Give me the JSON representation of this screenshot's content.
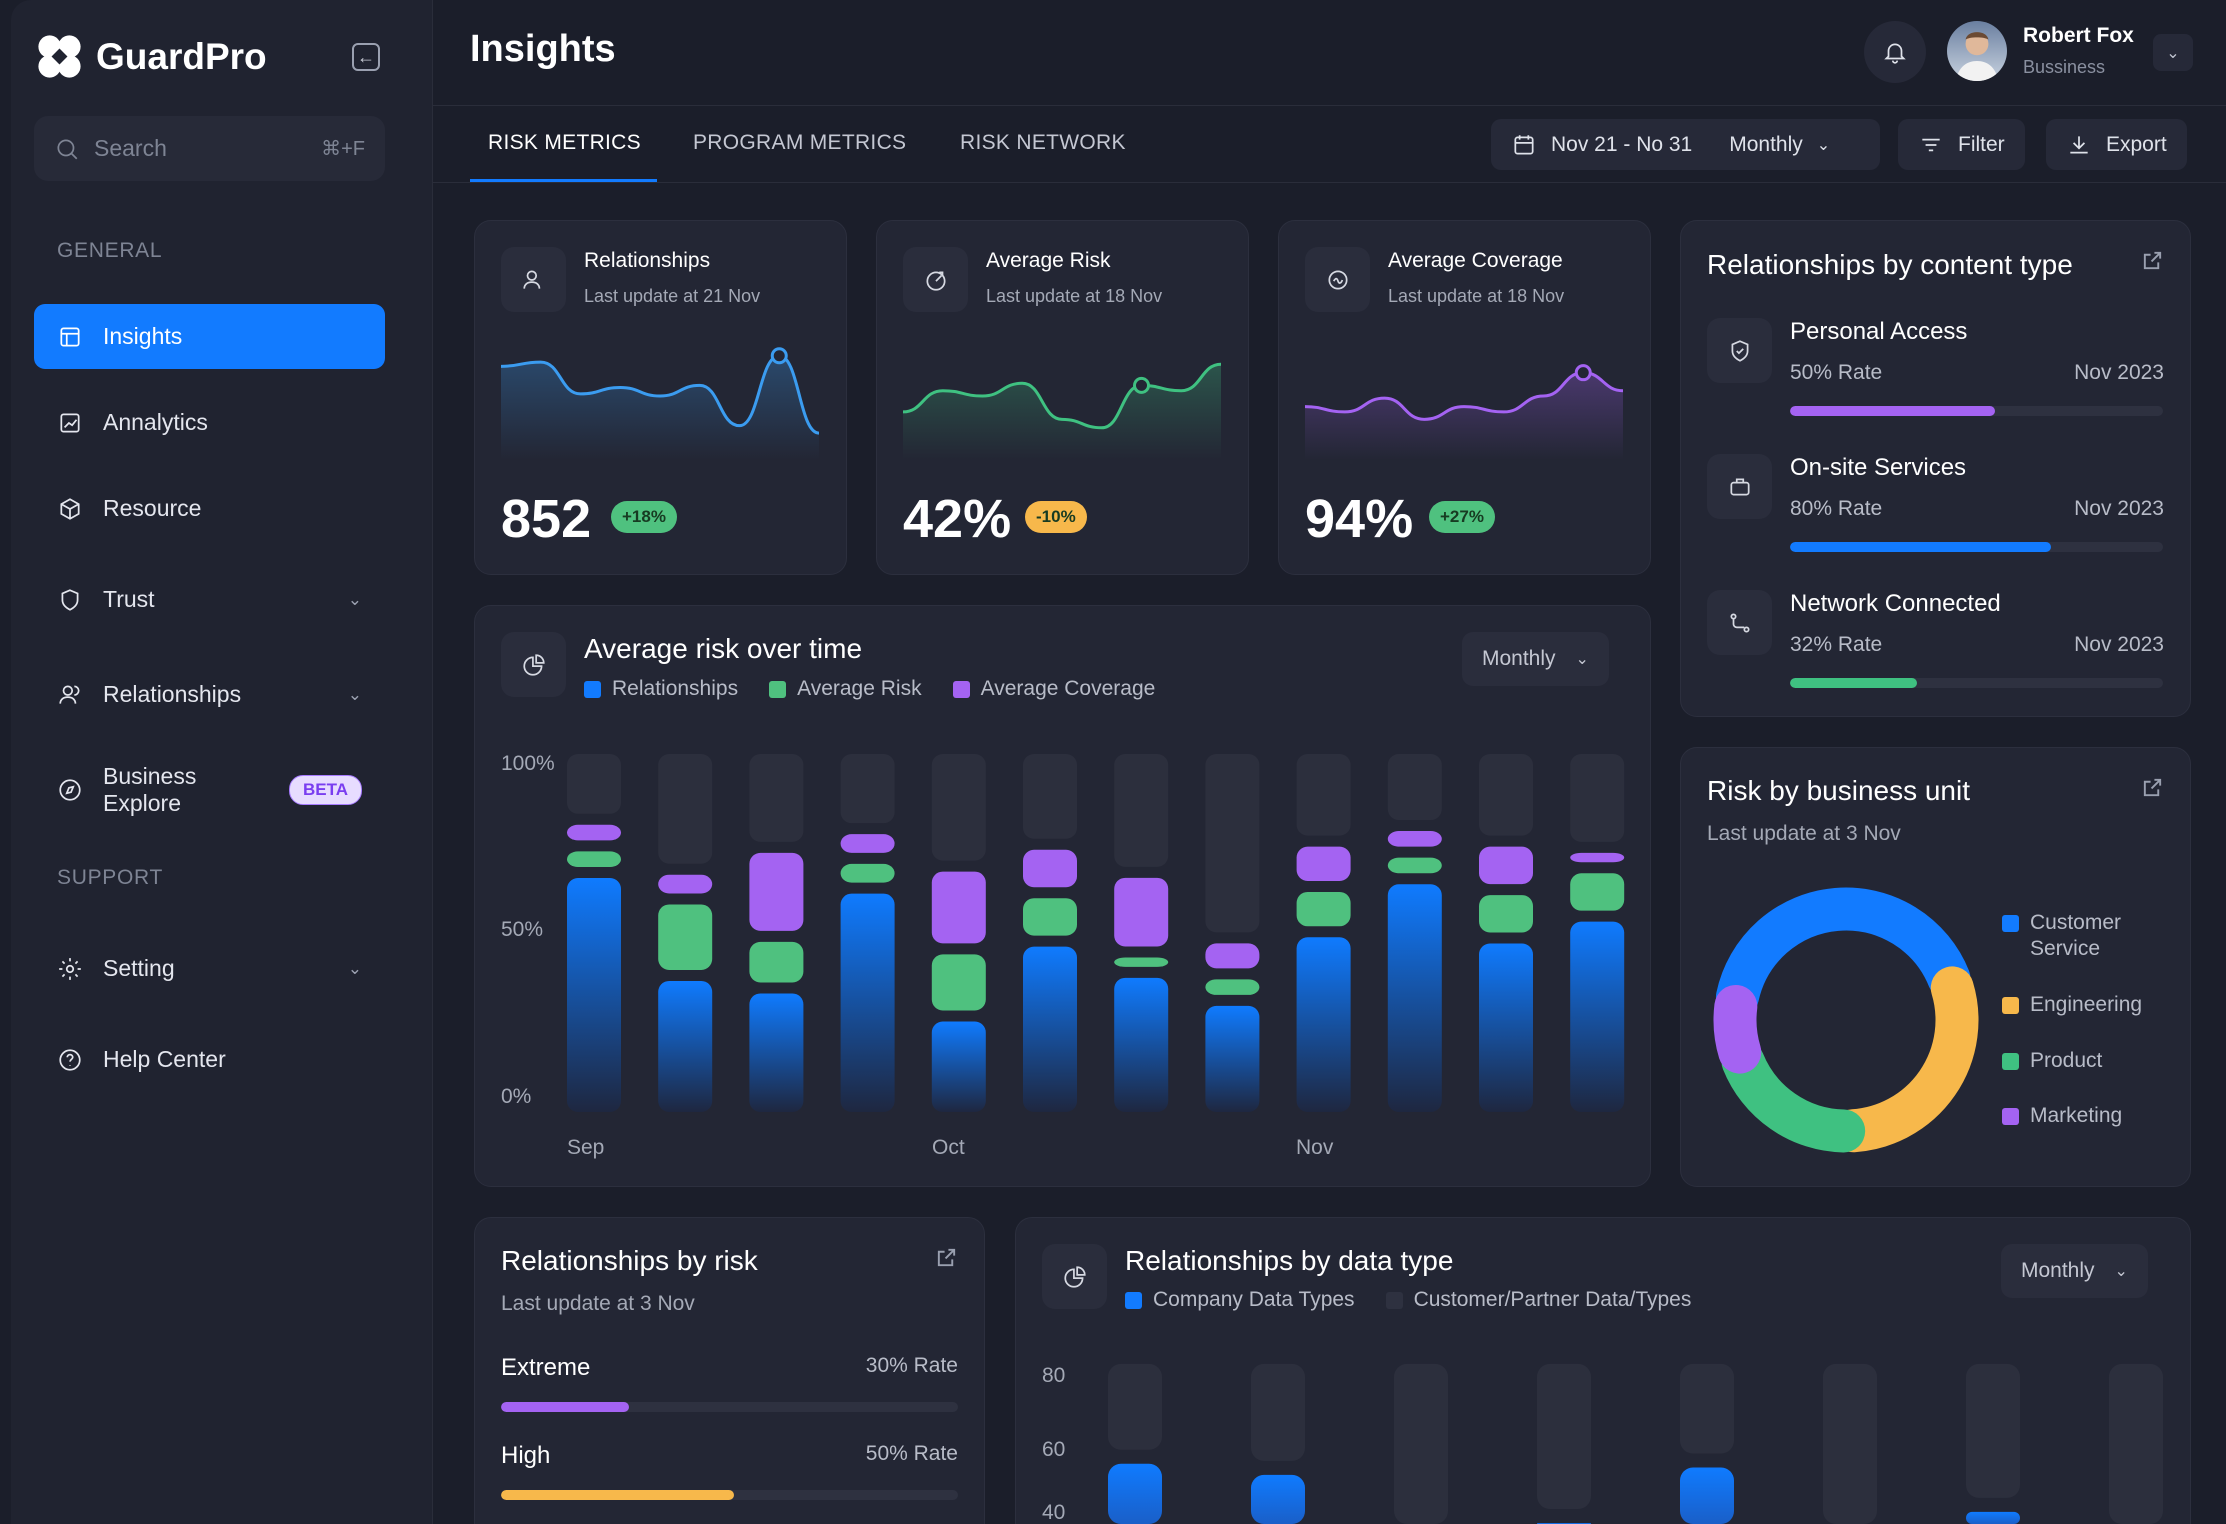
{
  "app": {
    "name": "GuardPro"
  },
  "sidebar": {
    "search_placeholder": "Search",
    "search_shortcut": "⌘+F",
    "general_label": "GENERAL",
    "support_label": "SUPPORT",
    "items": [
      {
        "label": "Insights",
        "icon": "layout-icon"
      },
      {
        "label": "Annalytics",
        "icon": "chart-icon"
      },
      {
        "label": "Resource",
        "icon": "cube-icon"
      },
      {
        "label": "Trust",
        "icon": "shield-icon"
      },
      {
        "label": "Relationships",
        "icon": "users-icon"
      },
      {
        "label": "Business Explore",
        "icon": "compass-icon",
        "badge": "BETA"
      }
    ],
    "support_items": [
      {
        "label": "Setting",
        "icon": "gear-icon"
      },
      {
        "label": "Help Center",
        "icon": "help-icon"
      }
    ]
  },
  "header": {
    "title": "Insights",
    "user": {
      "name": "Robert Fox",
      "role": "Bussiness"
    }
  },
  "tabs": [
    "RISK METRICS",
    "PROGRAM METRICS",
    "RISK NETWORK"
  ],
  "toolbar": {
    "date_range": "Nov 21 - No 31",
    "period": "Monthly",
    "filter": "Filter",
    "export": "Export"
  },
  "stats": [
    {
      "title": "Relationships",
      "sub": "Last update at 21 Nov",
      "value": "852",
      "change": "+18%",
      "color": "#3b9cf0",
      "badge_color": "#4fc17f",
      "trend": [
        78,
        82,
        52,
        58,
        50,
        60,
        22,
        88,
        15
      ],
      "marker": 7
    },
    {
      "title": "Average Risk",
      "sub": "Last update at 18 Nov",
      "value": "42%",
      "change": "-10%",
      "color": "#3fc181",
      "badge_color": "#f7b84b",
      "trend": [
        35,
        55,
        50,
        62,
        28,
        20,
        60,
        55,
        80
      ],
      "marker": 6
    },
    {
      "title": "Average Coverage",
      "sub": "Last update at 18 Nov",
      "value": "94%",
      "change": "+27%",
      "color": "#a463f2",
      "badge_color": "#4fc17f",
      "trend": [
        40,
        35,
        48,
        28,
        40,
        35,
        50,
        72,
        55
      ],
      "marker": 7
    }
  ],
  "content_type": {
    "title": "Relationships by content type",
    "items": [
      {
        "name": "Personal Access",
        "rate": "50% Rate",
        "date": "Nov 2023",
        "value": 55,
        "color": "#a463f2",
        "icon": "shield-check-icon"
      },
      {
        "name": "On-site Services",
        "rate": "80% Rate",
        "date": "Nov 2023",
        "value": 70,
        "color": "#127bff",
        "icon": "briefcase-icon"
      },
      {
        "name": "Network Connected",
        "rate": "32% Rate",
        "date": "Nov 2023",
        "value": 34,
        "color": "#3fc181",
        "icon": "route-icon"
      }
    ]
  },
  "chart_data": [
    {
      "type": "bar",
      "stacked": true,
      "title": "Average risk over time",
      "period": "Monthly",
      "legend": [
        "Relationships",
        "Average Risk",
        "Average Coverage"
      ],
      "colors": [
        "#127bff",
        "#4fc17f",
        "#a463f2"
      ],
      "yticks": [
        "100%",
        "50%",
        "0%"
      ],
      "xlabels": [
        "Sep",
        "Oct",
        "Nov"
      ],
      "ylim": [
        0,
        100
      ],
      "series": [
        {
          "name": "Relationships",
          "values": [
            75,
            42,
            38,
            70,
            29,
            53,
            43,
            34,
            56,
            73,
            54,
            61
          ]
        },
        {
          "name": "Average Risk",
          "values": [
            5,
            21,
            13,
            6,
            18,
            12,
            3,
            5,
            11,
            5,
            12,
            12
          ]
        },
        {
          "name": "Average Coverage",
          "values": [
            5,
            6,
            25,
            6,
            23,
            12,
            22,
            8,
            11,
            5,
            12,
            3
          ]
        }
      ]
    },
    {
      "type": "pie",
      "title": "Risk by business unit",
      "subtitle": "Last update at 3 Nov",
      "labels": [
        "Customer Service",
        "Engineering",
        "Product",
        "Marketing"
      ],
      "values": [
        42,
        30,
        20,
        8
      ],
      "colors": [
        "#127bff",
        "#f7b84b",
        "#3fc181",
        "#a463f2"
      ]
    },
    {
      "type": "bar",
      "title": "Relationships by data type",
      "period": "Monthly",
      "legend": [
        "Company Data Types",
        "Customer/Partner Data/Types"
      ],
      "yticks": [
        "80",
        "60",
        "40"
      ],
      "ylim": [
        0,
        90
      ],
      "series": [
        {
          "name": "Company Data Types",
          "values": [
            56,
            53,
            30,
            40,
            55,
            30,
            43,
            30
          ]
        },
        {
          "name": "Customer/Partner Data/Types",
          "values": [
            83,
            83,
            83,
            83,
            83,
            83,
            83,
            83
          ]
        }
      ]
    }
  ],
  "risk": {
    "title": "Relationships by risk",
    "sub": "Last update at 3 Nov",
    "items": [
      {
        "name": "Extreme",
        "rate": "30% Rate",
        "value": 28,
        "color": "#a463f2"
      },
      {
        "name": "High",
        "rate": "50% Rate",
        "value": 51,
        "color": "#f7b84b"
      }
    ]
  }
}
